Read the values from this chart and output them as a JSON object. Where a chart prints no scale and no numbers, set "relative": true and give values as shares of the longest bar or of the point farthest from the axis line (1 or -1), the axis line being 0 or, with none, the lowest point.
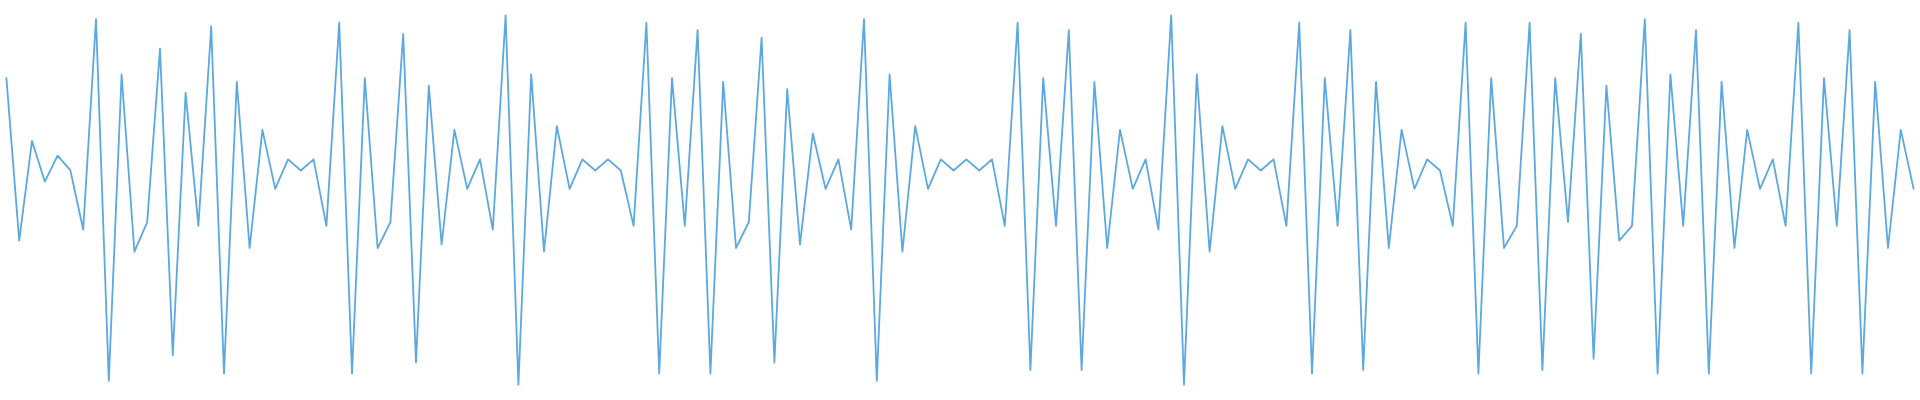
{
  "chart_data": {
    "type": "line",
    "relative": true,
    "categories": [
      null,
      null,
      null,
      null,
      null,
      null,
      null,
      null,
      null,
      null,
      null,
      null,
      null,
      null,
      null,
      null,
      null,
      null,
      null,
      null,
      null,
      null,
      null,
      null,
      null,
      null,
      null,
      null,
      null,
      null,
      null,
      null,
      null,
      null,
      null,
      null,
      null,
      null,
      null,
      null,
      null,
      null,
      null,
      null,
      null,
      null,
      null,
      null,
      null,
      null,
      null,
      null,
      null,
      null,
      null,
      null,
      null,
      null,
      null,
      null,
      null,
      null,
      null,
      null,
      null,
      null,
      null,
      null,
      null,
      null,
      null,
      null,
      null,
      null,
      null,
      null,
      null,
      null,
      null,
      null,
      null,
      null,
      null,
      null,
      null,
      null,
      null,
      null,
      null,
      null,
      null,
      null,
      null,
      null,
      null,
      null,
      null,
      null,
      null,
      null,
      null,
      null,
      null,
      null,
      null,
      null,
      null,
      null,
      null,
      null,
      null,
      null,
      null,
      null,
      null,
      null,
      null,
      null,
      null,
      null,
      null,
      null,
      null,
      null,
      null,
      null,
      null,
      null,
      null,
      null,
      null,
      null,
      null,
      null,
      null,
      null,
      null,
      null,
      null,
      null,
      null,
      null,
      null,
      null,
      null,
      null,
      null,
      null,
      null,
      null
    ],
    "series": [
      {
        "color": "#5ba9e0",
        "values": [
          0.83,
          0.39,
          0.66,
          0.55,
          0.62,
          0.58,
          0.42,
          0.99,
          0.01,
          0.84,
          0.36,
          0.44,
          0.91,
          0.08,
          0.79,
          0.43,
          0.97,
          0.03,
          0.82,
          0.37,
          0.69,
          0.53,
          0.61,
          0.58,
          0.61,
          0.43,
          0.98,
          0.03,
          0.83,
          0.37,
          0.44,
          0.95,
          0.06,
          0.81,
          0.38,
          0.69,
          0.53,
          0.61,
          0.42,
          1,
          0,
          0.84,
          0.36,
          0.7,
          0.53,
          0.61,
          0.58,
          0.61,
          0.58,
          0.43,
          0.98,
          0.03,
          0.83,
          0.43,
          0.96,
          0.03,
          0.82,
          0.37,
          0.44,
          0.94,
          0.06,
          0.8,
          0.38,
          0.68,
          0.53,
          0.61,
          0.42,
          0.99,
          0.01,
          0.84,
          0.36,
          0.7,
          0.53,
          0.61,
          0.58,
          0.61,
          0.58,
          0.61,
          0.43,
          0.98,
          0.04,
          0.83,
          0.43,
          0.96,
          0.04,
          0.82,
          0.37,
          0.69,
          0.53,
          0.61,
          0.42,
          1,
          0,
          0.84,
          0.36,
          0.7,
          0.53,
          0.61,
          0.58,
          0.61,
          0.43,
          0.98,
          0.03,
          0.83,
          0.43,
          0.96,
          0.04,
          0.82,
          0.37,
          0.69,
          0.53,
          0.61,
          0.58,
          0.43,
          0.98,
          0.03,
          0.83,
          0.37,
          0.43,
          0.98,
          0.04,
          0.83,
          0.44,
          0.95,
          0.07,
          0.81,
          0.39,
          0.43,
          0.99,
          0.03,
          0.84,
          0.43,
          0.96,
          0.03,
          0.82,
          0.37,
          0.69,
          0.53,
          0.61,
          0.43,
          0.98,
          0.03,
          0.83,
          0.43,
          0.96,
          0.03,
          0.82,
          0.37,
          0.69,
          0.53
        ]
      }
    ]
  }
}
